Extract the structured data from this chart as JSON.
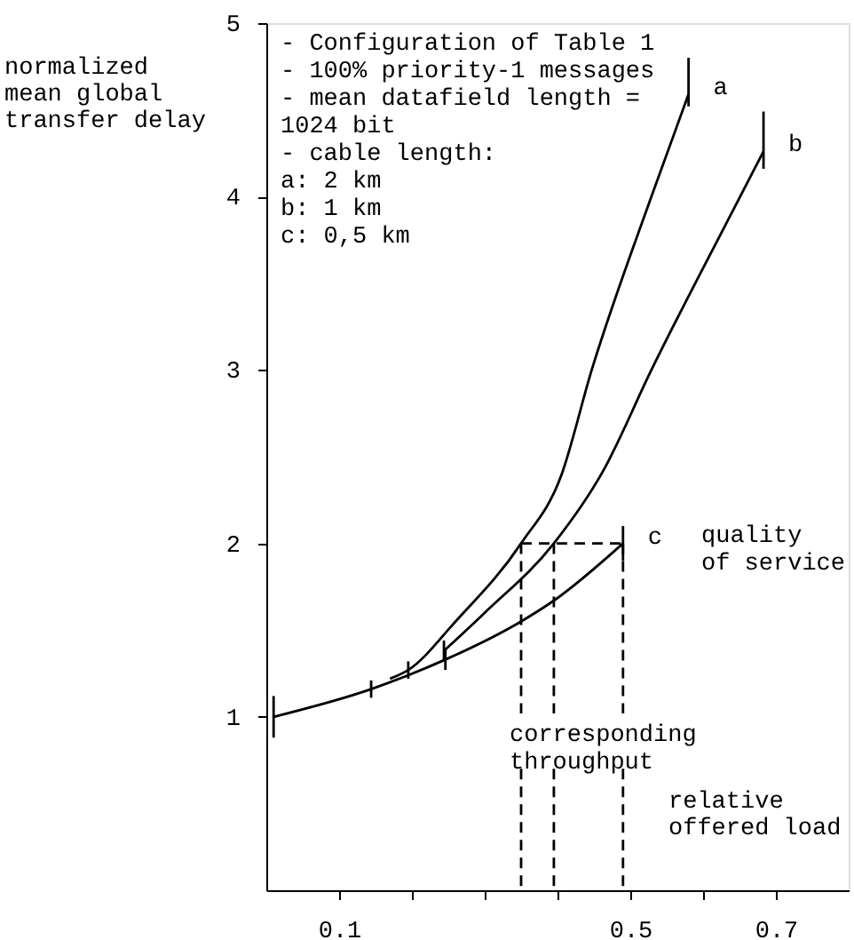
{
  "chart_data": {
    "type": "line",
    "xlabel": "relative\noffered load",
    "ylabel": "normalized\nmean global\ntransfer delay",
    "xlim": [
      0,
      0.8
    ],
    "xticks": [
      0.1,
      {
        "value": 0.2,
        "label": null
      },
      {
        "value": 0.3,
        "label": null
      },
      {
        "value": 0.4,
        "label": null
      },
      0.5,
      {
        "value": 0.6,
        "label": null
      },
      0.7
    ],
    "ylim": [
      0,
      5
    ],
    "yticks": [
      1,
      2,
      3,
      4,
      5
    ],
    "marker": "none",
    "line_style": "solid",
    "series": [
      {
        "name": "a",
        "color": "#000000",
        "x": [
          0.17,
          0.195,
          0.26,
          0.35,
          0.405,
          0.447,
          0.529,
          0.58
        ],
        "values": [
          1.22,
          1.27,
          1.55,
          2.0,
          2.39,
          3.0,
          4.0,
          4.59
        ],
        "errors": [
          null,
          0.05,
          null,
          null,
          null,
          null,
          null,
          [
            4.52,
            4.8
          ]
        ]
      },
      {
        "name": "b",
        "color": "#000000",
        "x": [
          0.244,
          0.3,
          0.395,
          0.463,
          0.529,
          0.651,
          0.683
        ],
        "values": [
          1.38,
          1.6,
          2.0,
          2.42,
          3.0,
          4.0,
          4.26
        ],
        "errors": [
          0.06,
          null,
          null,
          null,
          null,
          null,
          [
            4.16,
            4.49
          ]
        ]
      },
      {
        "name": "c",
        "color": "#000000",
        "x": [
          0.01,
          0.144,
          0.195,
          0.246,
          0.35,
          0.395,
          0.49
        ],
        "values": [
          1.0,
          1.16,
          1.24,
          1.33,
          1.55,
          1.67,
          2.0
        ],
        "errors": [
          0.12,
          0.05,
          null,
          0.06,
          null,
          null,
          0.1
        ]
      },
      {
        "color": "#000000",
        "line_style": "dashed",
        "x": [
          0.35,
          0.49
        ],
        "values": [
          2.0,
          2.0
        ]
      },
      {
        "color": "#000000",
        "line_style": "dashed",
        "x": [
          0.35,
          0.35
        ],
        "values": [
          2.0,
          1.02
        ]
      },
      {
        "color": "#000000",
        "line_style": "dashed",
        "x": [
          0.35,
          0.35
        ],
        "values": [
          0.7,
          0
        ]
      },
      {
        "color": "#000000",
        "line_style": "dashed",
        "x": [
          0.395,
          0.395
        ],
        "values": [
          2.0,
          1.02
        ]
      },
      {
        "color": "#000000",
        "line_style": "dashed",
        "x": [
          0.395,
          0.395
        ],
        "values": [
          0.7,
          0
        ]
      },
      {
        "color": "#000000",
        "line_style": "dashed",
        "x": [
          0.49,
          0.49
        ],
        "values": [
          2.0,
          1.02
        ]
      },
      {
        "color": "#000000",
        "line_style": "dashed",
        "x": [
          0.49,
          0.49
        ],
        "values": [
          0.7,
          0
        ]
      }
    ],
    "annotations": [
      "- Configuration of Table 1\n- 100% priority-1 messages\n- mean datafield length =\n1024 bit\n- cable length:\na:  2 km\nb:  1 km\nc:  0,5 km",
      "quality\nof service",
      "corresponding\nthroughput"
    ]
  }
}
